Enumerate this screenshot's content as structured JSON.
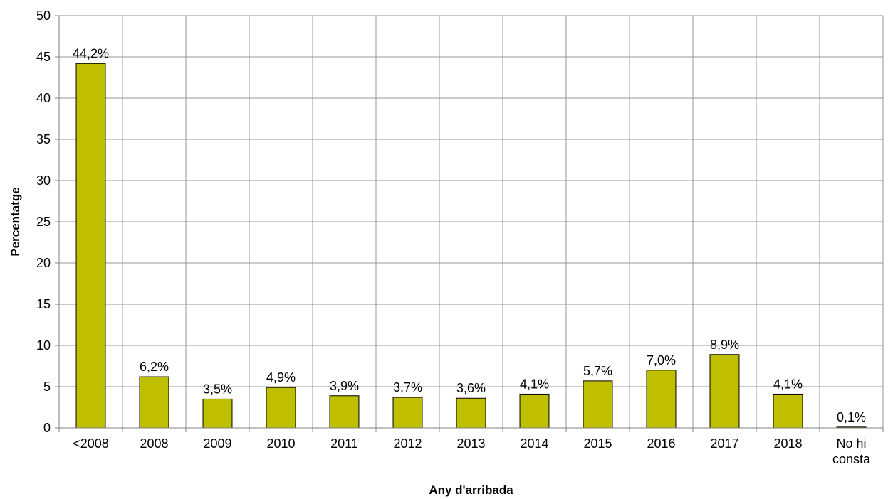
{
  "chart_data": {
    "type": "bar",
    "categories": [
      "<2008",
      "2008",
      "2009",
      "2010",
      "2011",
      "2012",
      "2013",
      "2014",
      "2015",
      "2016",
      "2017",
      "2018",
      "No hi consta"
    ],
    "values": [
      44.2,
      6.2,
      3.5,
      4.9,
      3.9,
      3.7,
      3.6,
      4.1,
      5.7,
      7.0,
      8.9,
      4.1,
      0.1
    ],
    "data_labels": [
      "44,2%",
      "6,2%",
      "3,5%",
      "4,9%",
      "3,9%",
      "3,7%",
      "3,6%",
      "4,1%",
      "5,7%",
      "7,0%",
      "8,9%",
      "4,1%",
      "0,1%"
    ],
    "title": "",
    "xlabel": "Any d'arribada",
    "ylabel": "Percentatge",
    "ylim": [
      0,
      50
    ],
    "yticks": [
      0,
      5,
      10,
      15,
      20,
      25,
      30,
      35,
      40,
      45,
      50
    ],
    "grid": true,
    "legend": "none",
    "bar_color": "#bfbf00"
  }
}
